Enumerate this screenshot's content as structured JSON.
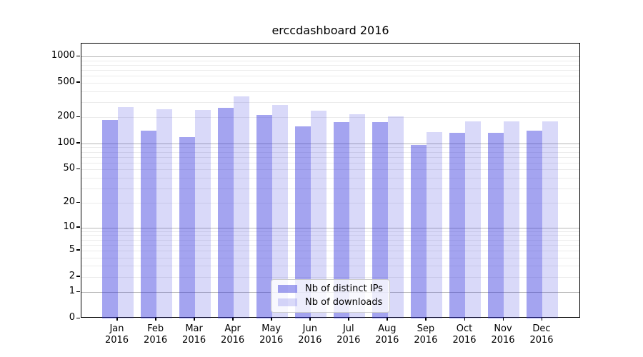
{
  "chart_data": {
    "type": "bar",
    "title": "erccdashboard 2016",
    "categories": [
      "Jan",
      "Feb",
      "Mar",
      "Apr",
      "May",
      "Jun",
      "Jul",
      "Aug",
      "Sep",
      "Oct",
      "Nov",
      "Dec"
    ],
    "year": "2016",
    "series": [
      {
        "name": "Nb of distinct IPs",
        "values": [
          187,
          140,
          119,
          258,
          215,
          157,
          176,
          176,
          96,
          133,
          133,
          140
        ],
        "base_color": "#2d2ddc",
        "alpha": 0.43
      },
      {
        "name": "Nb of downloads",
        "values": [
          263,
          249,
          245,
          346,
          277,
          237,
          217,
          204,
          135,
          179,
          181,
          180
        ],
        "base_color": "#2d2ddc",
        "alpha": 0.18
      }
    ],
    "xlabel": "",
    "ylabel": "",
    "yticks": [
      0,
      1,
      2,
      5,
      10,
      20,
      50,
      100,
      200,
      500,
      1000
    ],
    "ylim": [
      0,
      1400
    ],
    "yscale": "log10(value+1)",
    "grid": "both",
    "legend_position": "lower-center",
    "colors": {
      "major_grid": "#b6b6b6",
      "minor_grid": "#ebebeb",
      "spine": "#000000",
      "text": "#000000",
      "background": "#ffffff"
    }
  }
}
